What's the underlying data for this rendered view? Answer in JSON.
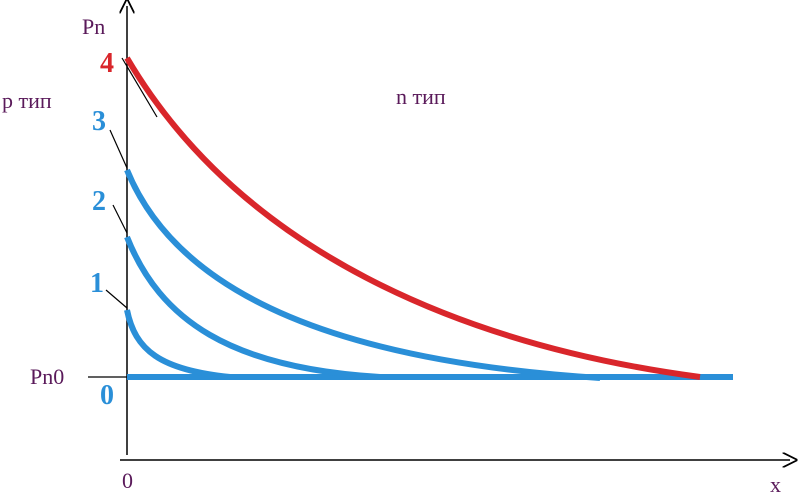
{
  "axes": {
    "y_label": "Pn",
    "x_label": "x",
    "origin": "0",
    "baseline_label": "Pn0"
  },
  "regions": {
    "left": "p тип",
    "right": "n тип"
  },
  "curves": [
    {
      "label": "0"
    },
    {
      "label": "1"
    },
    {
      "label": "2"
    },
    {
      "label": "3"
    },
    {
      "label": "4"
    }
  ]
}
